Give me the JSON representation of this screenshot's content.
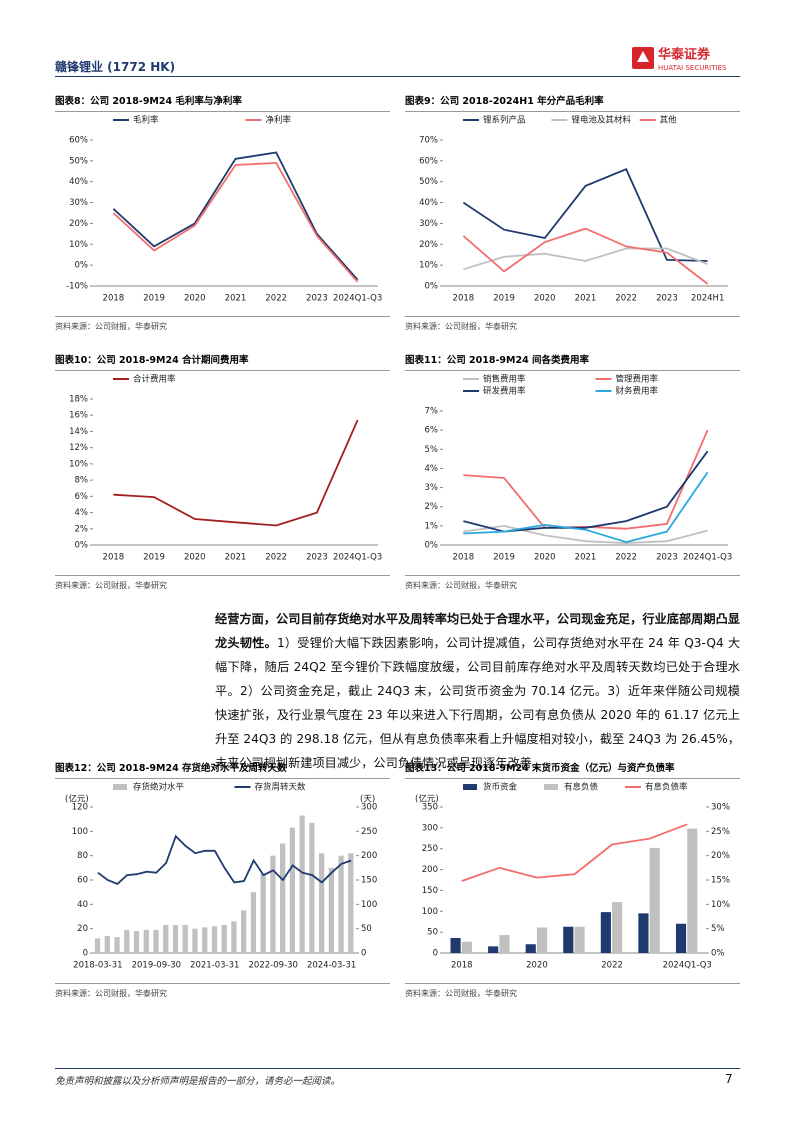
{
  "header": {
    "company": "赣锋锂业 (1772 HK)",
    "logo_cn": "华泰证券",
    "logo_en": "HUATAI SECURITIES"
  },
  "chart_data": [
    {
      "type": "line",
      "label": "图表8：",
      "title": "公司 2018-9M24 毛利率与净利率",
      "source": "资料来源：公司财报，华泰研究",
      "categories": [
        "2018",
        "2019",
        "2020",
        "2021",
        "2022",
        "2023",
        "2024Q1-Q3"
      ],
      "ylim": [
        -10,
        60
      ],
      "yticks": [
        {
          "value": -10,
          "label": "-10%"
        },
        {
          "value": 0,
          "label": "0%"
        },
        {
          "value": 10,
          "label": "10%"
        },
        {
          "value": 20,
          "label": "20%"
        },
        {
          "value": 30,
          "label": "30%"
        },
        {
          "value": 40,
          "label": "40%"
        },
        {
          "value": 50,
          "label": "50%"
        },
        {
          "value": 60,
          "label": "60%"
        }
      ],
      "series": [
        {
          "name": "毛利率",
          "color": "#1f3a6e",
          "values": [
            27,
            9,
            20,
            51,
            54,
            15,
            -7
          ]
        },
        {
          "name": "净利率",
          "color": "#f26d6d",
          "values": [
            25,
            7,
            19,
            48,
            49,
            14,
            -8
          ]
        }
      ]
    },
    {
      "type": "line",
      "label": "图表9：",
      "title": "公司 2018-2024H1 年分产品毛利率",
      "source": "资料来源：公司财报，华泰研究",
      "categories": [
        "2018",
        "2019",
        "2020",
        "2021",
        "2022",
        "2023",
        "2024H1"
      ],
      "ylim": [
        0,
        70
      ],
      "yticks": [
        {
          "value": 0,
          "label": "0%"
        },
        {
          "value": 10,
          "label": "10%"
        },
        {
          "value": 20,
          "label": "20%"
        },
        {
          "value": 30,
          "label": "30%"
        },
        {
          "value": 40,
          "label": "40%"
        },
        {
          "value": 50,
          "label": "50%"
        },
        {
          "value": 60,
          "label": "60%"
        },
        {
          "value": 70,
          "label": "70%"
        }
      ],
      "series": [
        {
          "name": "锂系列产品",
          "color": "#1f3a6e",
          "values": [
            40,
            27,
            23,
            48,
            56,
            12.5,
            12
          ]
        },
        {
          "name": "锂电池及其材料",
          "color": "#c0c0c0",
          "values": [
            8,
            14,
            15.5,
            12,
            18,
            18,
            10.5
          ]
        },
        {
          "name": "其他",
          "color": "#f26d6d",
          "values": [
            24,
            7,
            21,
            27.5,
            19,
            16,
            1
          ]
        }
      ]
    },
    {
      "type": "line",
      "label": "图表10：",
      "title": "公司 2018-9M24 合计期间费用率",
      "source": "资料来源：公司财报，华泰研究",
      "categories": [
        "2018",
        "2019",
        "2020",
        "2021",
        "2022",
        "2023",
        "2024Q1-Q3"
      ],
      "ylim": [
        0,
        18
      ],
      "yticks": [
        {
          "value": 0,
          "label": "0%"
        },
        {
          "value": 2,
          "label": "2%"
        },
        {
          "value": 4,
          "label": "4%"
        },
        {
          "value": 6,
          "label": "6%"
        },
        {
          "value": 8,
          "label": "8%"
        },
        {
          "value": 10,
          "label": "10%"
        },
        {
          "value": 12,
          "label": "12%"
        },
        {
          "value": 14,
          "label": "14%"
        },
        {
          "value": 16,
          "label": "16%"
        },
        {
          "value": 18,
          "label": "18%"
        }
      ],
      "series": [
        {
          "name": "合计费用率",
          "color": "#a31f1f",
          "values": [
            6.2,
            5.9,
            3.2,
            2.8,
            2.4,
            4.0,
            15.4
          ]
        }
      ]
    },
    {
      "type": "line",
      "label": "图表11：",
      "title": "公司 2018-9M24 间各类费用率",
      "source": "资料来源：公司财报，华泰研究",
      "categories": [
        "2018",
        "2019",
        "2020",
        "2021",
        "2022",
        "2023",
        "2024Q1-Q3"
      ],
      "ylim": [
        0,
        7
      ],
      "yticks": [
        {
          "value": 0,
          "label": "0%"
        },
        {
          "value": 1,
          "label": "1%"
        },
        {
          "value": 2,
          "label": "2%"
        },
        {
          "value": 3,
          "label": "3%"
        },
        {
          "value": 4,
          "label": "4%"
        },
        {
          "value": 5,
          "label": "5%"
        },
        {
          "value": 6,
          "label": "6%"
        },
        {
          "value": 7,
          "label": "7%"
        }
      ],
      "series": [
        {
          "name": "销售费用率",
          "color": "#c0c0c0",
          "values": [
            0.7,
            1.0,
            0.5,
            0.2,
            0.1,
            0.2,
            0.75
          ]
        },
        {
          "name": "管理费用率",
          "color": "#f26d6d",
          "values": [
            3.65,
            3.5,
            0.9,
            0.95,
            0.85,
            1.1,
            6.0
          ]
        },
        {
          "name": "研发费用率",
          "color": "#1f3a6e",
          "values": [
            1.25,
            0.7,
            0.9,
            0.9,
            1.25,
            2.0,
            4.9
          ]
        },
        {
          "name": "财务费用率",
          "color": "#29a8e0",
          "values": [
            0.6,
            0.7,
            1.05,
            0.8,
            0.15,
            0.7,
            3.8
          ]
        }
      ]
    },
    {
      "type": "combo",
      "label": "图表12：",
      "title": "公司 2018-9M24 存货绝对水平及周转天数",
      "source": "资料来源：公司财报，华泰研究",
      "categories": [
        "2018-03-31",
        null,
        null,
        null,
        null,
        null,
        "2019-09-30",
        null,
        null,
        null,
        null,
        null,
        "2021-03-31",
        null,
        null,
        null,
        null,
        null,
        "2022-09-30",
        null,
        null,
        null,
        null,
        null,
        "2024-03-31",
        null,
        null
      ],
      "ylabel": "(亿元)",
      "y2label": "(天)",
      "ylim": [
        0,
        120
      ],
      "yticks": [
        0,
        20,
        40,
        60,
        80,
        100,
        120
      ],
      "y2lim": [
        0,
        300
      ],
      "y2ticks": [
        0,
        50,
        100,
        150,
        200,
        250,
        300
      ],
      "series": [
        {
          "name": "存货绝对水平",
          "color": "#c0c0c0",
          "mark": "bar",
          "values": [
            12,
            14,
            13,
            19,
            18,
            19,
            19,
            23,
            23,
            23,
            20,
            21,
            22,
            23,
            26,
            35,
            50,
            65,
            80,
            90,
            103,
            113,
            107,
            82,
            70,
            80,
            82
          ]
        },
        {
          "name": "存货周转天数",
          "color": "#1f3a6e",
          "mark": "line",
          "axis": "y2",
          "values": [
            165,
            150,
            142,
            160,
            162,
            167,
            165,
            185,
            240,
            220,
            205,
            210,
            210,
            175,
            145,
            148,
            190,
            160,
            170,
            150,
            180,
            165,
            160,
            145,
            165,
            183,
            190
          ]
        }
      ]
    },
    {
      "type": "combo",
      "label": "图表13：",
      "title": "公司 2018-9M24 末货币资金（亿元）与资产负债率",
      "source": "资料来源：公司财报，华泰研究",
      "categories": [
        "2018",
        null,
        "2020",
        null,
        "2022",
        null,
        "2024Q1-Q3"
      ],
      "ylabel": "(亿元)",
      "ylim": [
        0,
        350
      ],
      "yticks": [
        0,
        50,
        100,
        150,
        200,
        250,
        300,
        350
      ],
      "y2lim": [
        0,
        30
      ],
      "y2ticks": [
        {
          "value": 0,
          "label": "0%"
        },
        {
          "value": 5,
          "label": "5%"
        },
        {
          "value": 10,
          "label": "10%"
        },
        {
          "value": 15,
          "label": "15%"
        },
        {
          "value": 20,
          "label": "20%"
        },
        {
          "value": 25,
          "label": "25%"
        },
        {
          "value": 30,
          "label": "30%"
        }
      ],
      "series": [
        {
          "name": "货币资金",
          "color": "#1f3a6e",
          "mark": "bar",
          "values": [
            36,
            16,
            21,
            63,
            98,
            95,
            70.14
          ]
        },
        {
          "name": "有息负债",
          "color": "#c0c0c0",
          "mark": "bar",
          "values": [
            27,
            43,
            61.17,
            63,
            122,
            252,
            298.18
          ]
        },
        {
          "name": "有息负债率",
          "color": "#f26d6d",
          "mark": "line",
          "axis": "y2",
          "values": [
            14.8,
            17.5,
            15.5,
            16.2,
            22.3,
            23.5,
            26.45
          ]
        }
      ]
    }
  ],
  "body_text": {
    "lead": "经营方面，公司目前存货绝对水平及周转率均已处于合理水平，公司现金充足，行业底部周期凸显龙头韧性。",
    "rest": "1）受锂价大幅下跌因素影响，公司计提减值，公司存货绝对水平在 24 年 Q3-Q4 大幅下降，随后 24Q2 至今锂价下跌幅度放缓，公司目前库存绝对水平及周转天数均已处于合理水平。2）公司资金充足，截止 24Q3 末，公司货币资金为 70.14 亿元。3）近年来伴随公司规模快速扩张，及行业景气度在 23 年以来进入下行周期，公司有息负债从 2020 年的 61.17 亿元上升至 24Q3 的 298.18 亿元，但从有息负债率来看上升幅度相对较小，截至 24Q3 为 26.45%，未来公司规划新建项目减少，公司负债情况或呈现逐年改善。"
  },
  "footer": {
    "disclaimer": "免责声明和披露以及分析师声明是报告的一部分，请务必一起阅读。",
    "page": 7
  }
}
